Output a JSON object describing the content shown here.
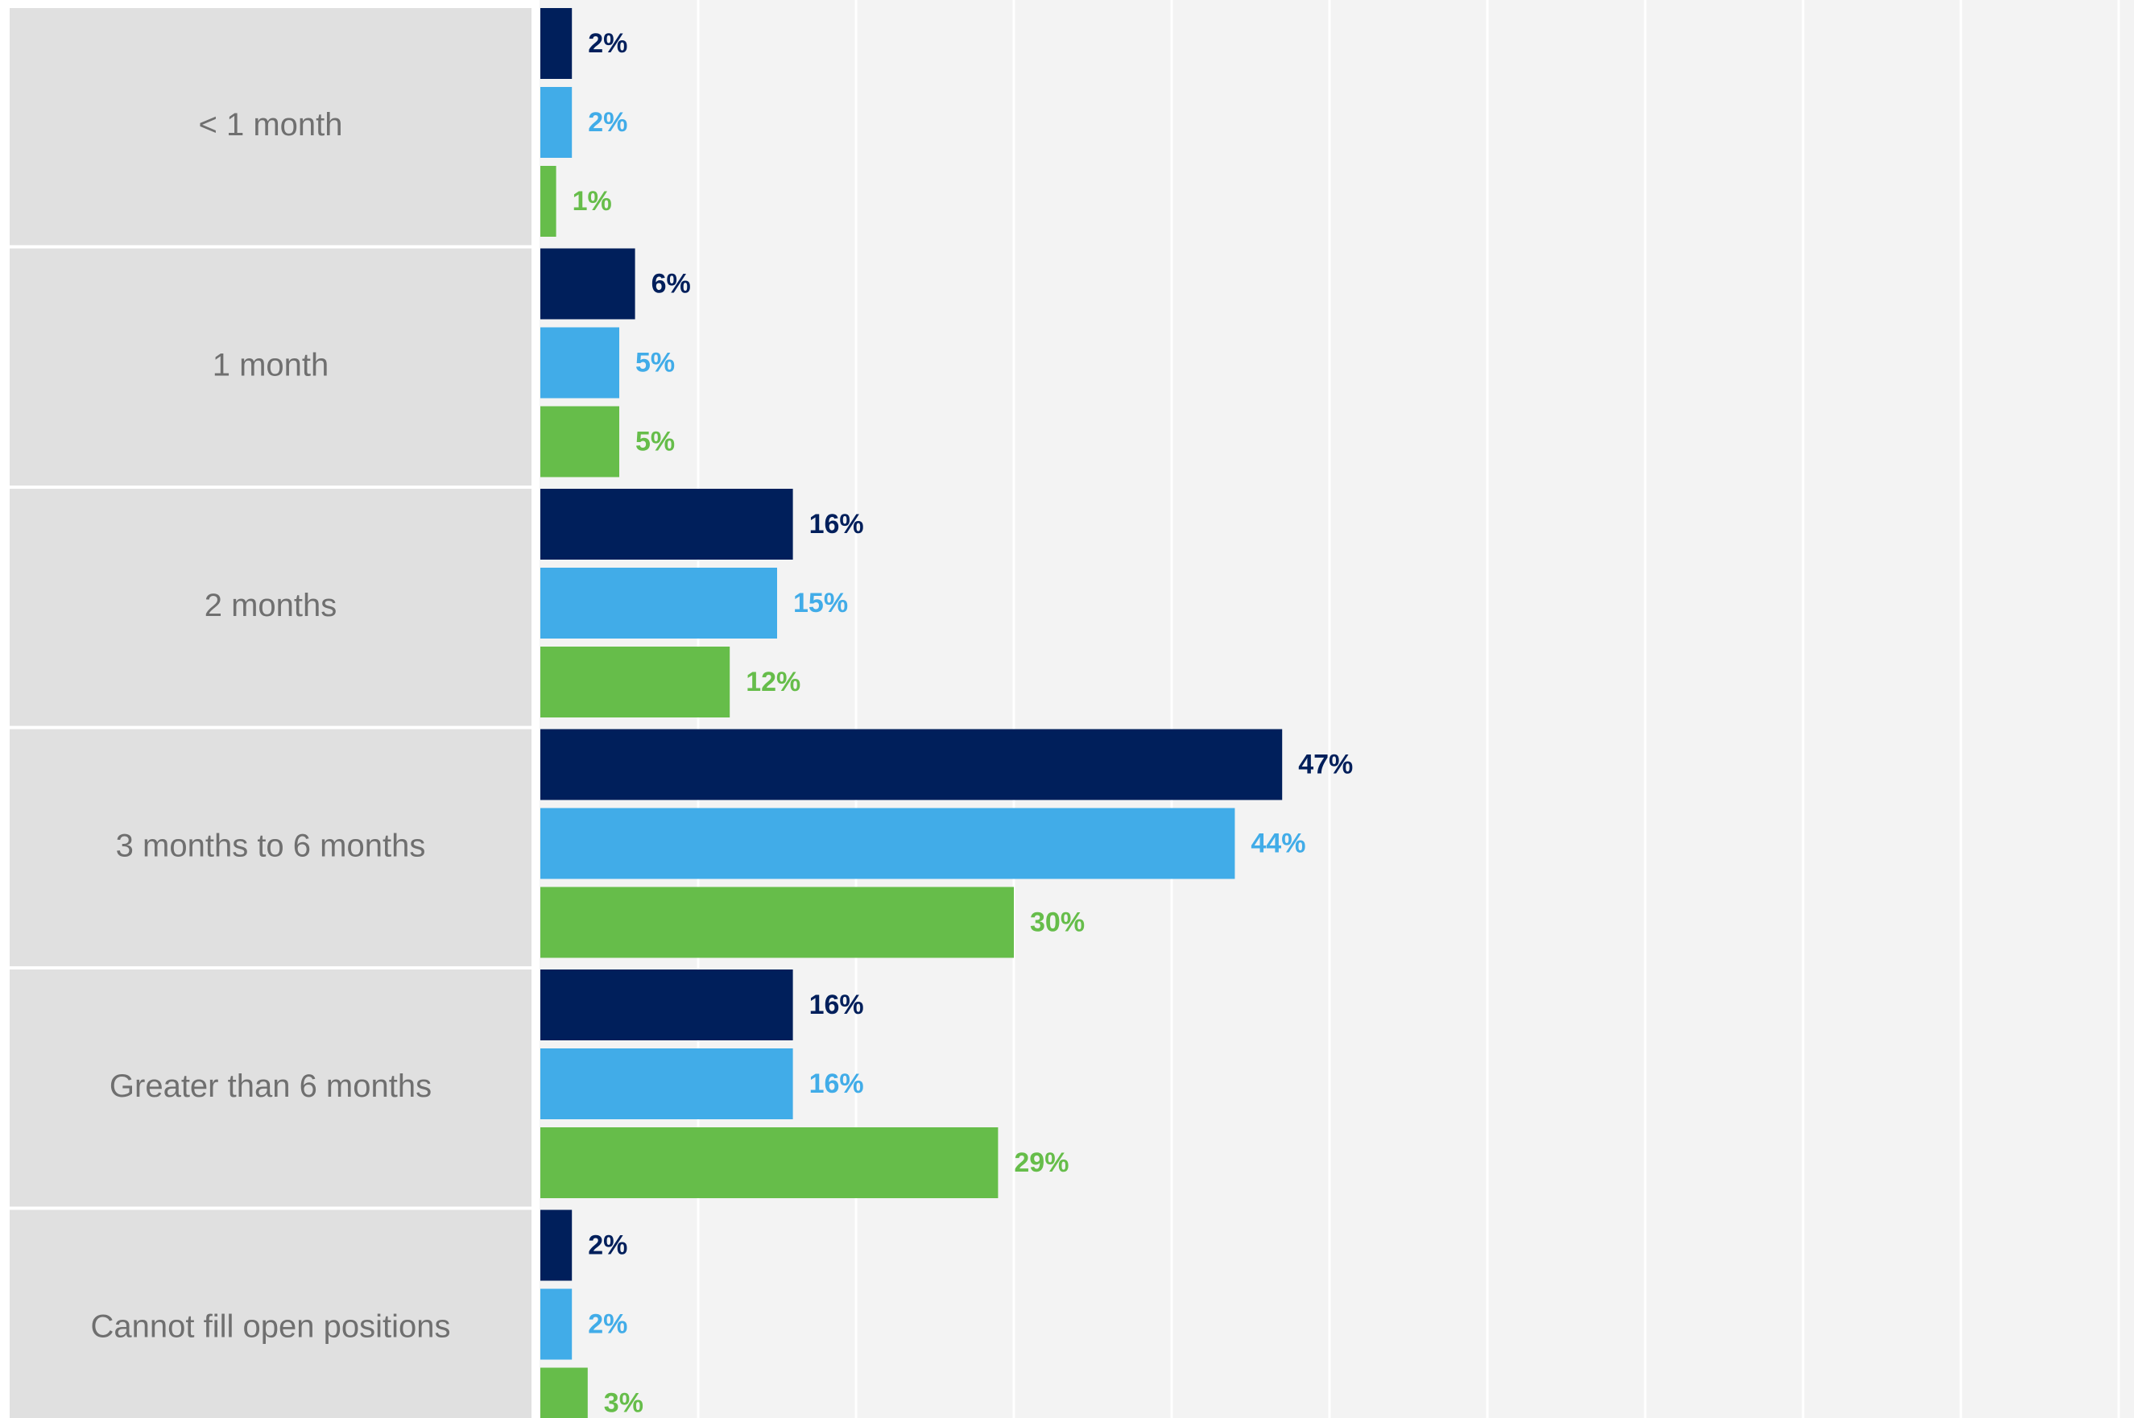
{
  "colors": {
    "series": [
      "#001f5b",
      "#41ace8",
      "#66bd4a"
    ],
    "plot_bg": "#f3f3f3",
    "label_bg": "#e0e0e0",
    "gridline": "#ffffff",
    "category_text": "#6f6f6f"
  },
  "chart_data": {
    "type": "bar",
    "orientation": "horizontal",
    "categories": [
      "< 1 month",
      "1 month",
      "2 months",
      "3 months to 6 months",
      "Greater than 6 months",
      "Cannot fill open positions"
    ],
    "series": [
      {
        "values": [
          2,
          6,
          16,
          47,
          16,
          2
        ],
        "labels": [
          "2%",
          "6%",
          "16%",
          "47%",
          "16%",
          "2%"
        ]
      },
      {
        "values": [
          2,
          5,
          15,
          44,
          16,
          2
        ],
        "labels": [
          "2%",
          "5%",
          "15%",
          "44%",
          "16%",
          "2%"
        ]
      },
      {
        "values": [
          1,
          5,
          12,
          30,
          29,
          3
        ],
        "labels": [
          "1%",
          "5%",
          "12%",
          "30%",
          "29%",
          "3%"
        ]
      }
    ],
    "xlim": [
      0,
      100
    ],
    "grid": true,
    "legend": "none"
  }
}
